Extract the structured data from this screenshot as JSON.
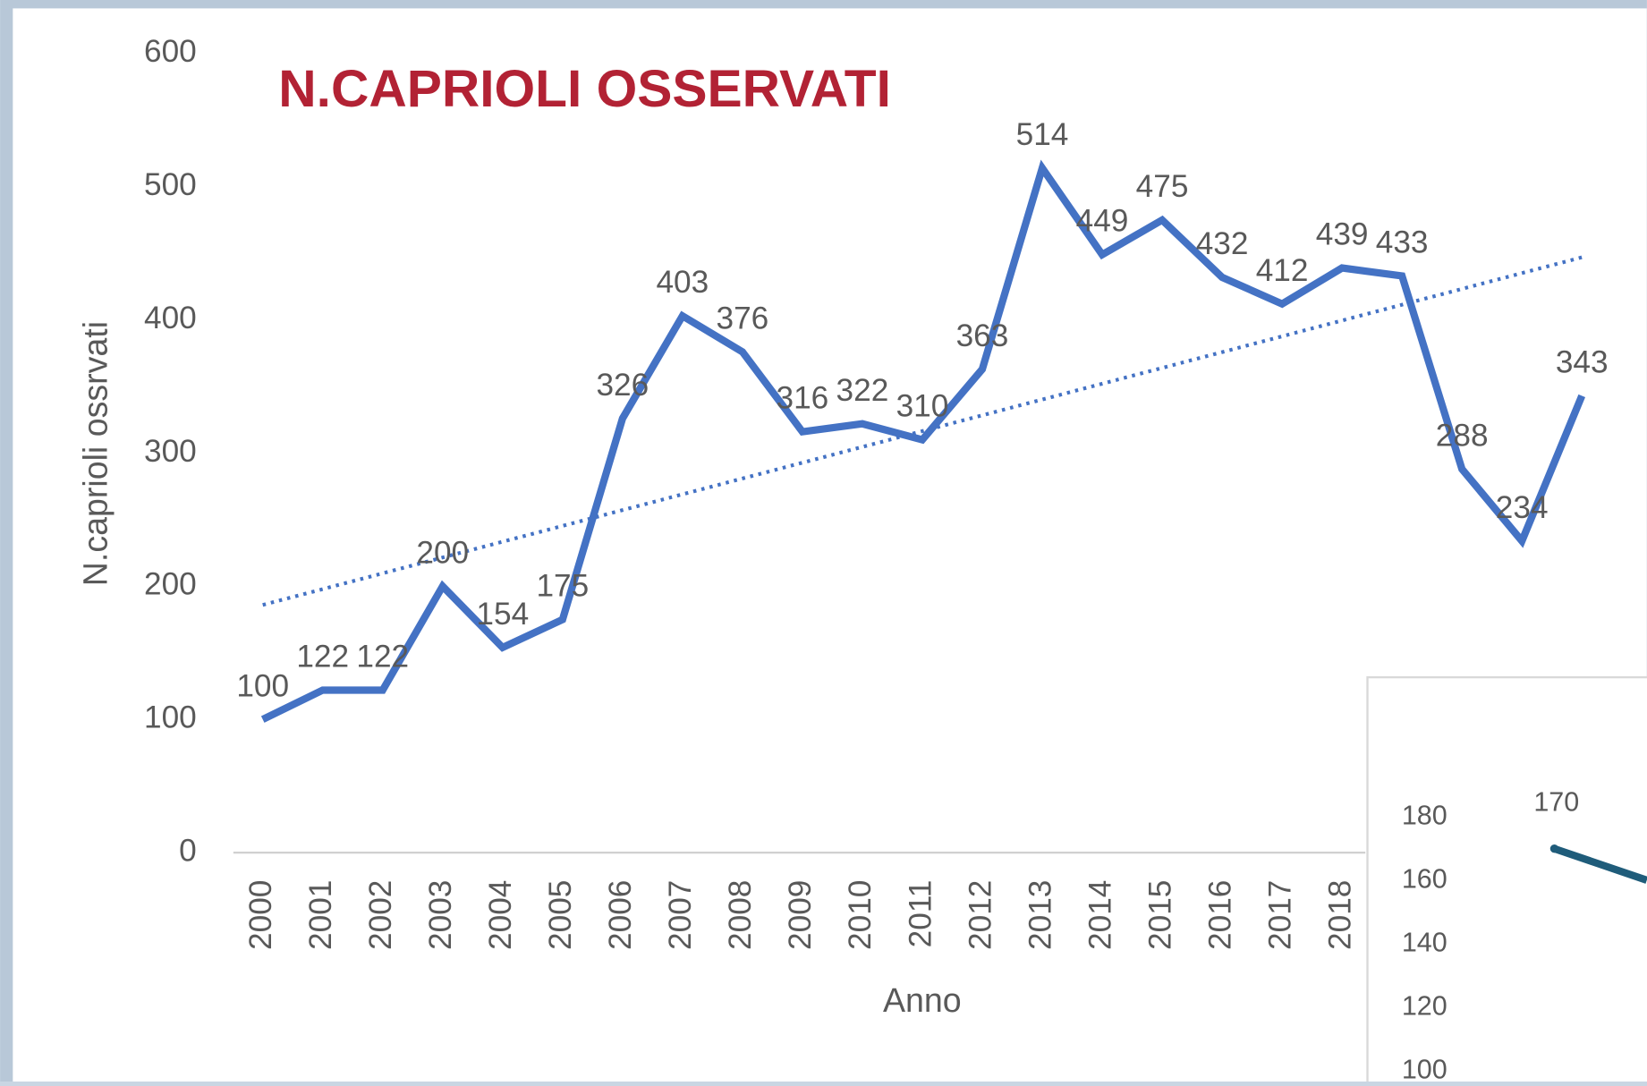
{
  "chart_data": [
    {
      "type": "line",
      "title": "N.CAPRIOLI OSSERVATI",
      "xlabel": "Anno",
      "ylabel": "N.caprioli ossrvati",
      "categories": [
        "2000",
        "2001",
        "2002",
        "2003",
        "2004",
        "2005",
        "2006",
        "2007",
        "2008",
        "2009",
        "2010",
        "2011",
        "2012",
        "2013",
        "2014",
        "2015",
        "2016",
        "2017",
        "2018",
        null,
        null,
        null,
        null
      ],
      "series": [
        {
          "color": "#4472c4",
          "values": [
            100,
            122,
            122,
            200,
            154,
            175,
            326,
            403,
            376,
            316,
            322,
            310,
            363,
            514,
            449,
            475,
            432,
            412,
            439,
            433,
            288,
            234,
            343
          ]
        }
      ],
      "trendline": [
        186,
        447
      ],
      "ylim": [
        0,
        600
      ],
      "yticks": [
        0,
        100,
        200,
        300,
        400,
        500,
        600
      ]
    },
    {
      "type": "line",
      "series": [
        {
          "color": "#1f5c7a",
          "values": [
            170
          ]
        }
      ],
      "ylim": [
        100,
        180
      ],
      "yticks": [
        100,
        120,
        140,
        160,
        180
      ]
    }
  ]
}
